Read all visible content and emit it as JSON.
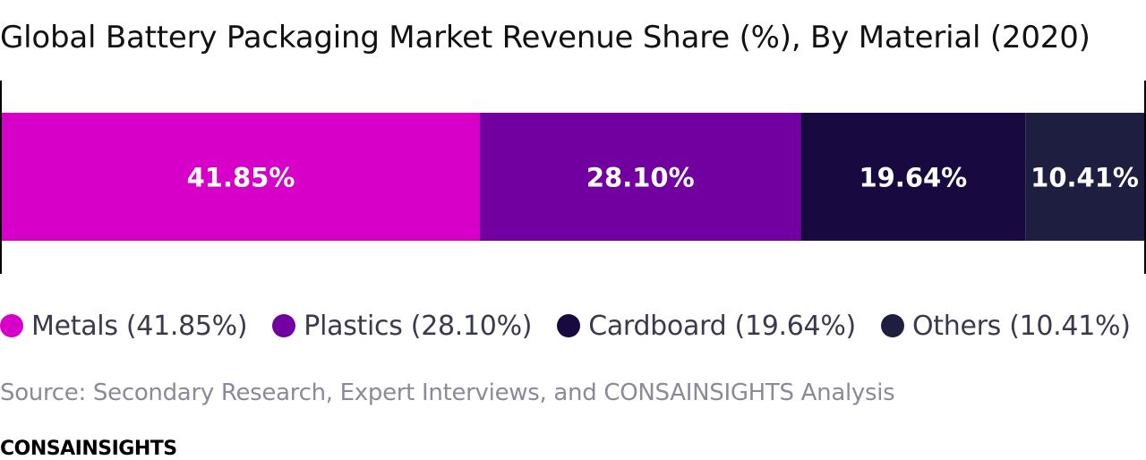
{
  "title": "Global Battery Packaging Market Revenue Share (%), By Material (2020)",
  "chart_data": {
    "type": "bar",
    "orientation": "horizontal-stacked",
    "categories": [
      "Metals",
      "Plastics",
      "Cardboard",
      "Others"
    ],
    "values": [
      41.85,
      28.1,
      19.64,
      10.41
    ],
    "value_labels": [
      "41.85%",
      "28.10%",
      "19.64%",
      "10.41%"
    ],
    "colors": [
      "#d700c8",
      "#7200a0",
      "#180a40",
      "#1e1e40"
    ],
    "total": 100,
    "legend_position": "bottom"
  },
  "legend": [
    {
      "label": "Metals (41.85%)",
      "color": "#d700c8"
    },
    {
      "label": "Plastics (28.10%)",
      "color": "#7200a0"
    },
    {
      "label": "Cardboard (19.64%)",
      "color": "#180a40"
    },
    {
      "label": "Others (10.41%)",
      "color": "#1e1e40"
    }
  ],
  "source": "Source: Secondary Research, Expert Interviews, and CONSAINSIGHTS Analysis",
  "brand": "CONSAINSIGHTS"
}
